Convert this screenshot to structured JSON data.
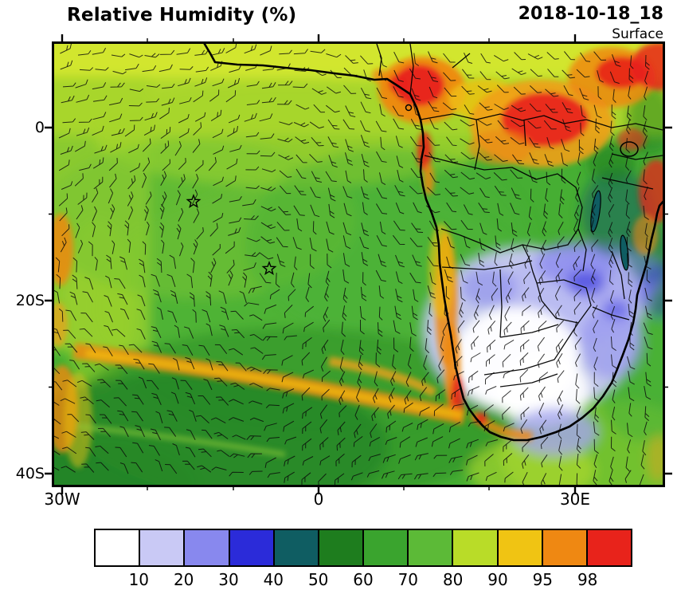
{
  "header": {
    "title": "Relative Humidity (%)",
    "datetime": "2018-10-18_18",
    "level": "Surface"
  },
  "axes": {
    "y_labels": [
      "0",
      "20S",
      "40S"
    ],
    "x_labels": [
      "30W",
      "0",
      "30E"
    ]
  },
  "colorbar": {
    "labels": [
      "10",
      "20",
      "30",
      "40",
      "50",
      "60",
      "70",
      "80",
      "90",
      "95",
      "98"
    ],
    "colors": [
      "#ffffff",
      "#c9c9f5",
      "#8888ee",
      "#2b2bd9",
      "#0f5d62",
      "#1e7d1e",
      "#3aa42e",
      "#5cba37",
      "#b9dc28",
      "#f0c413",
      "#ef8812",
      "#e8231b"
    ]
  },
  "map": {
    "markers": [
      "station-star",
      "station-star"
    ],
    "overlays": [
      "wind-barbs",
      "coastlines",
      "country-borders",
      "lakes"
    ]
  },
  "chart_data": {
    "type": "heatmap",
    "title": "Relative Humidity (%)",
    "timestamp": "2018-10-18_18",
    "level": "Surface",
    "unit": "%",
    "x_axis": {
      "label": "longitude",
      "tick_labels": [
        "30W",
        "0",
        "30E"
      ],
      "approx_range": [
        "31W",
        "40E"
      ]
    },
    "y_axis": {
      "label": "latitude",
      "tick_labels": [
        "0",
        "20S",
        "40S"
      ],
      "approx_range": [
        "10N",
        "41S"
      ]
    },
    "colorbar_levels": [
      10,
      20,
      30,
      40,
      50,
      60,
      70,
      80,
      90,
      95,
      98
    ],
    "colorbar_colors": [
      "#ffffff",
      "#c9c9f5",
      "#8888ee",
      "#2b2bd9",
      "#0f5d62",
      "#1e7d1e",
      "#3aa42e",
      "#5cba37",
      "#b9dc28",
      "#f0c413",
      "#ef8812",
      "#e8231b"
    ],
    "overlays": [
      "wind barbs",
      "coastlines",
      "country borders",
      "two star markers"
    ],
    "features": [
      {
        "region": "Gulf of Guinea coast and Sahel (top center/right)",
        "value": "95-98+ (orange/red humidity maxima)"
      },
      {
        "region": "Kalahari / Namibia interior (southern Africa)",
        "value": "<10-30 (white/lavender/blue dry minimum)"
      },
      {
        "region": "South Atlantic open ocean",
        "value": "60-80 (greens) with anticyclonic wind gyre"
      },
      {
        "region": "SW Atlantic frontal band toward Namibia coast",
        "value": "90-98 (orange streaks)"
      },
      {
        "region": "East Africa (right edge)",
        "value": "mixed 30-50 teal/blue patches with 98+ red spots"
      }
    ]
  }
}
